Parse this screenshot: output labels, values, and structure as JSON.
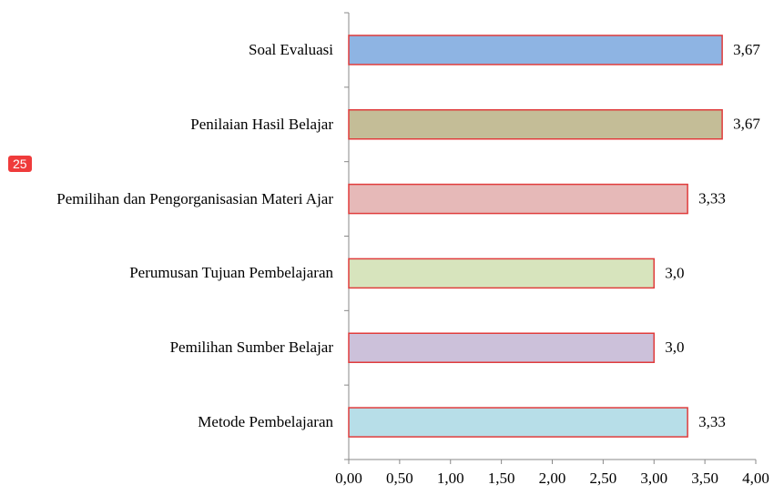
{
  "chart_data": {
    "type": "barh",
    "annotation": "25",
    "categories": [
      "Soal Evaluasi",
      "Penilaian Hasil Belajar",
      "Pemilihan dan Pengorganisasian Materi Ajar",
      "Perumusan Tujuan Pembelajaran",
      "Pemilihan Sumber Belajar",
      "Metode Pembelajaran"
    ],
    "values": [
      3.67,
      3.67,
      3.33,
      3.0,
      3.0,
      3.33
    ],
    "value_labels": [
      "3,67",
      "3,67",
      "3,33",
      "3,0",
      "3,0",
      "3,33"
    ],
    "colors": [
      "#8eb4e3",
      "#c4bd97",
      "#e6b9b8",
      "#d7e4bd",
      "#ccc1da",
      "#b7dee8"
    ],
    "edge_color": "#e03c3c",
    "xlim": [
      0,
      4
    ],
    "xticks": [
      {
        "value": 0,
        "label": "0,00"
      },
      {
        "value": 0.5,
        "label": "0,50"
      },
      {
        "value": 1,
        "label": "1,00"
      },
      {
        "value": 1.5,
        "label": "1,50"
      },
      {
        "value": 2,
        "label": "2,00"
      },
      {
        "value": 2.5,
        "label": "2,50"
      },
      {
        "value": 3,
        "label": "3,00"
      },
      {
        "value": 3.5,
        "label": "3,50"
      },
      {
        "value": 4,
        "label": "4,00"
      }
    ]
  }
}
